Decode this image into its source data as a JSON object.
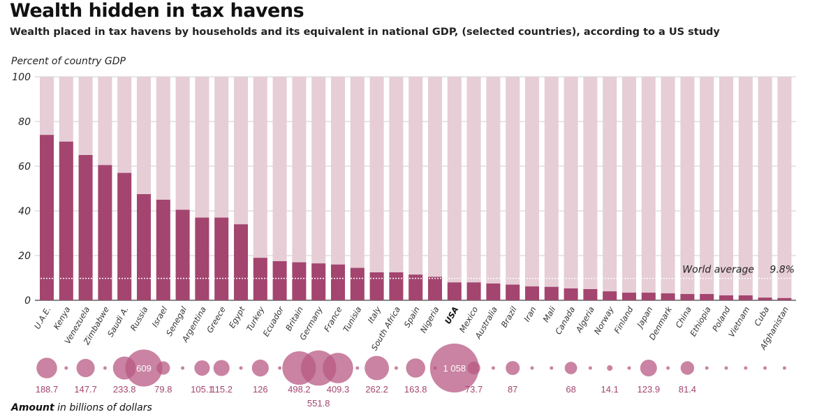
{
  "chart_data": {
    "type": "bar",
    "title": "Wealth hidden in tax havens",
    "subtitle": "Wealth placed in tax havens by households and its equivalent in national GDP, (selected countries), according to a US study",
    "ylabel": "Percent of country GDP",
    "ylim": [
      0,
      100
    ],
    "yticks": [
      0,
      20,
      40,
      60,
      80,
      100
    ],
    "grid": true,
    "reference_line": {
      "label": "World average",
      "value_label": "9.8%",
      "value": 9.8
    },
    "bubble_label_bold": "Amount",
    "bubble_label_rest": " in billions of dollars",
    "categories": [
      "U.A.E.",
      "Kenya",
      "Venezuela",
      "Zimbabwe",
      "Saudi A.",
      "Russia",
      "Israel",
      "Senegal",
      "Argentina",
      "Greece",
      "Egypt",
      "Turkey",
      "Ecuador",
      "Britain",
      "Germany",
      "France",
      "Tunisia",
      "Italy",
      "South Africa",
      "Spain",
      "Nigeria",
      "USA",
      "Mexico",
      "Australia",
      "Brazil",
      "Iran",
      "Mali",
      "Canada",
      "Algeria",
      "Norway",
      "Finland",
      "Japan",
      "Denmark",
      "China",
      "Ethiopia",
      "Poland",
      "Vietnam",
      "Cuba",
      "Afghanistan"
    ],
    "values": [
      74,
      71,
      65,
      60.5,
      57,
      47.5,
      45,
      40.5,
      37,
      37,
      34,
      19,
      17.5,
      17,
      16.5,
      16,
      14.5,
      12.5,
      12.5,
      11.5,
      10.5,
      8,
      8,
      7.5,
      7,
      6.2,
      6,
      5.3,
      5,
      4,
      3.4,
      3.4,
      3.1,
      2.8,
      2.8,
      2.2,
      2.2,
      1.2,
      1
    ],
    "amounts": [
      188.7,
      null,
      147.7,
      null,
      233.8,
      609,
      79.8,
      null,
      105.1,
      115.2,
      null,
      126,
      null,
      498.2,
      551.8,
      409.3,
      null,
      262.2,
      null,
      163.8,
      null,
      1058,
      73.7,
      null,
      87,
      null,
      null,
      68,
      null,
      14.1,
      null,
      123.9,
      null,
      81.4,
      null,
      null,
      null,
      null,
      null
    ],
    "amount_labels": [
      "188.7",
      "",
      "147.7",
      "",
      "233.8",
      "609",
      "79.8",
      "",
      "105.1",
      "115.2",
      "",
      "126",
      "",
      "498.2",
      "551.8",
      "409.3",
      "",
      "262.2",
      "",
      "163.8",
      "",
      "1 058",
      "73.7",
      "",
      "87",
      "",
      "",
      "68",
      "",
      "14.1",
      "",
      "123.9",
      "",
      "81.4",
      "",
      "",
      "",
      "",
      ""
    ],
    "colors": {
      "bar": "#a3456f",
      "background_bar": "#e6cdd6",
      "bubble": "#b85a83",
      "amount_text": "#a3456f"
    }
  }
}
